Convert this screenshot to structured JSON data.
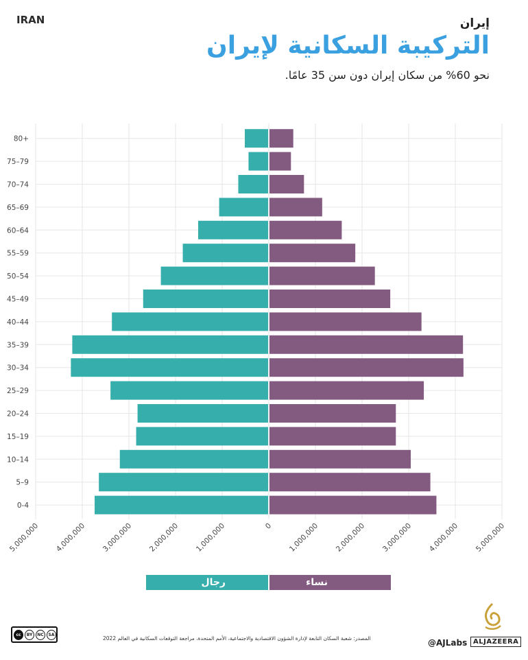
{
  "header": {
    "country_label": "IRAN",
    "kicker": "إيران",
    "title": "التركيبة السكانية لإيران",
    "subtitle": "نحو 60% من سكان إيران دون سن 35 عامًا."
  },
  "legend": {
    "men_label": "رجال",
    "women_label": "نساء"
  },
  "footer": {
    "source": "المصدر: شعبة السكان التابعة لإدارة الشؤون الاقتصادية والاجتماعية، الأمم المتحدة، مراجعة التوقعات السكانية في العالم 2022",
    "handle": "@AJLabs",
    "brand": "ALJAZEERA",
    "license_badges": [
      "cc",
      "BY",
      "NC",
      "SA"
    ]
  },
  "colors": {
    "men": "#36aeab",
    "women": "#835a80",
    "title": "#3aa0e0",
    "grid": "#e6e6e6"
  },
  "chart_data": {
    "type": "bar",
    "orientation": "horizontal-population-pyramid",
    "categories": [
      "80+",
      "75–79",
      "70–74",
      "65–69",
      "60–64",
      "55–59",
      "50–54",
      "45–49",
      "40–44",
      "35–39",
      "30–34",
      "25–29",
      "20–24",
      "15–19",
      "10–14",
      "5–9",
      "0-4"
    ],
    "series": [
      {
        "name": "رجال",
        "side": "left",
        "values": [
          500000,
          420000,
          640000,
          1050000,
          1500000,
          1830000,
          2300000,
          2680000,
          3350000,
          4200000,
          4230000,
          3380000,
          2800000,
          2830000,
          3180000,
          3630000,
          3720000
        ]
      },
      {
        "name": "نساء",
        "side": "right",
        "values": [
          510000,
          460000,
          740000,
          1130000,
          1550000,
          1840000,
          2260000,
          2590000,
          3260000,
          4150000,
          4160000,
          3310000,
          2710000,
          2710000,
          3030000,
          3450000,
          3580000
        ]
      }
    ],
    "x_ticks": [
      "5,000,000",
      "4,000,000",
      "3,000,000",
      "2,000,000",
      "1,000,000",
      "0",
      "1,000,000",
      "2,000,000",
      "3,000,000",
      "4,000,000",
      "5,000,000"
    ],
    "xlim": [
      -5000000,
      5000000
    ],
    "grid": true
  }
}
